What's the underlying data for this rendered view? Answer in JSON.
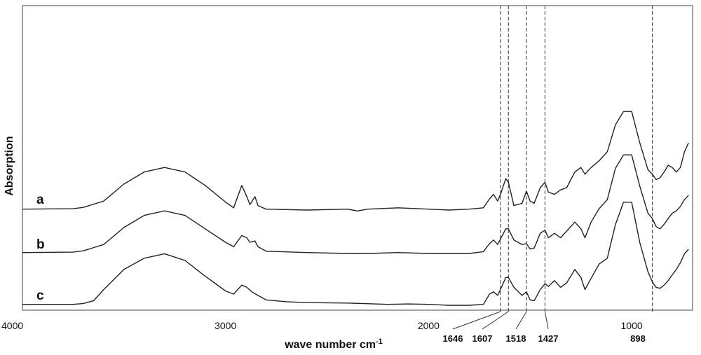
{
  "chart_data": {
    "type": "line",
    "xlabel": "wave number cm",
    "xlabel_superscript": "-1",
    "ylabel": "Absorption",
    "x_axis_reversed": true,
    "xlim": [
      4000,
      700
    ],
    "x_ticks": [
      "4000",
      "3000",
      "2000",
      "1000"
    ],
    "peak_markers": [
      "1646",
      "1607",
      "1518",
      "1427",
      "898"
    ],
    "series": [
      {
        "name": "a",
        "points": [
          [
            4000,
            0.02
          ],
          [
            3750,
            0.03
          ],
          [
            3700,
            0.06
          ],
          [
            3600,
            0.2
          ],
          [
            3500,
            0.58
          ],
          [
            3400,
            0.85
          ],
          [
            3300,
            0.95
          ],
          [
            3200,
            0.85
          ],
          [
            3100,
            0.55
          ],
          [
            3000,
            0.18
          ],
          [
            2960,
            0.05
          ],
          [
            2920,
            0.55
          ],
          [
            2895,
            0.3
          ],
          [
            2880,
            0.12
          ],
          [
            2855,
            0.3
          ],
          [
            2840,
            0.1
          ],
          [
            2800,
            0.02
          ],
          [
            2600,
            0.0
          ],
          [
            2400,
            0.02
          ],
          [
            2350,
            -0.02
          ],
          [
            2300,
            0.02
          ],
          [
            2150,
            0.05
          ],
          [
            2000,
            0.02
          ],
          [
            1900,
            0.0
          ],
          [
            1800,
            0.02
          ],
          [
            1730,
            0.05
          ],
          [
            1700,
            0.25
          ],
          [
            1680,
            0.35
          ],
          [
            1660,
            0.2
          ],
          [
            1646,
            0.35
          ],
          [
            1620,
            0.7
          ],
          [
            1607,
            0.62
          ],
          [
            1580,
            0.1
          ],
          [
            1540,
            0.15
          ],
          [
            1518,
            0.42
          ],
          [
            1500,
            0.2
          ],
          [
            1480,
            0.15
          ],
          [
            1450,
            0.5
          ],
          [
            1427,
            0.62
          ],
          [
            1410,
            0.4
          ],
          [
            1380,
            0.35
          ],
          [
            1350,
            0.45
          ],
          [
            1320,
            0.5
          ],
          [
            1280,
            0.85
          ],
          [
            1250,
            0.95
          ],
          [
            1230,
            0.8
          ],
          [
            1200,
            0.95
          ],
          [
            1160,
            1.1
          ],
          [
            1120,
            1.3
          ],
          [
            1080,
            1.9
          ],
          [
            1040,
            2.2
          ],
          [
            1000,
            2.2
          ],
          [
            960,
            1.5
          ],
          [
            920,
            0.9
          ],
          [
            898,
            0.8
          ],
          [
            880,
            0.68
          ],
          [
            860,
            0.72
          ],
          [
            840,
            0.85
          ],
          [
            820,
            1.0
          ],
          [
            800,
            0.95
          ],
          [
            780,
            0.85
          ],
          [
            760,
            0.95
          ],
          [
            740,
            1.3
          ],
          [
            720,
            1.5
          ]
        ]
      },
      {
        "name": "b",
        "points": [
          [
            4000,
            0.02
          ],
          [
            3750,
            0.03
          ],
          [
            3700,
            0.06
          ],
          [
            3600,
            0.2
          ],
          [
            3500,
            0.58
          ],
          [
            3400,
            0.85
          ],
          [
            3300,
            0.95
          ],
          [
            3200,
            0.85
          ],
          [
            3100,
            0.55
          ],
          [
            3000,
            0.25
          ],
          [
            2960,
            0.15
          ],
          [
            2920,
            0.4
          ],
          [
            2895,
            0.35
          ],
          [
            2880,
            0.25
          ],
          [
            2855,
            0.28
          ],
          [
            2840,
            0.15
          ],
          [
            2800,
            0.05
          ],
          [
            2600,
            0.02
          ],
          [
            2400,
            0.0
          ],
          [
            2300,
            0.0
          ],
          [
            2150,
            0.02
          ],
          [
            2000,
            0.0
          ],
          [
            1900,
            0.0
          ],
          [
            1800,
            0.0
          ],
          [
            1730,
            0.04
          ],
          [
            1700,
            0.22
          ],
          [
            1680,
            0.3
          ],
          [
            1660,
            0.2
          ],
          [
            1646,
            0.32
          ],
          [
            1620,
            0.55
          ],
          [
            1607,
            0.55
          ],
          [
            1580,
            0.3
          ],
          [
            1540,
            0.2
          ],
          [
            1518,
            0.22
          ],
          [
            1500,
            0.1
          ],
          [
            1480,
            0.12
          ],
          [
            1450,
            0.45
          ],
          [
            1427,
            0.52
          ],
          [
            1410,
            0.35
          ],
          [
            1380,
            0.45
          ],
          [
            1350,
            0.35
          ],
          [
            1320,
            0.5
          ],
          [
            1280,
            0.7
          ],
          [
            1250,
            0.55
          ],
          [
            1230,
            0.35
          ],
          [
            1200,
            0.7
          ],
          [
            1160,
            1.0
          ],
          [
            1120,
            1.2
          ],
          [
            1080,
            1.9
          ],
          [
            1040,
            2.2
          ],
          [
            1000,
            2.2
          ],
          [
            960,
            1.5
          ],
          [
            920,
            0.9
          ],
          [
            898,
            0.78
          ],
          [
            880,
            0.6
          ],
          [
            860,
            0.55
          ],
          [
            840,
            0.65
          ],
          [
            820,
            0.78
          ],
          [
            800,
            0.9
          ],
          [
            780,
            0.95
          ],
          [
            760,
            1.05
          ],
          [
            740,
            1.2
          ],
          [
            720,
            1.3
          ]
        ]
      },
      {
        "name": "c",
        "points": [
          [
            4000,
            0.02
          ],
          [
            3750,
            0.02
          ],
          [
            3700,
            0.04
          ],
          [
            3650,
            0.1
          ],
          [
            3600,
            0.35
          ],
          [
            3500,
            0.8
          ],
          [
            3400,
            1.05
          ],
          [
            3300,
            1.15
          ],
          [
            3200,
            1.0
          ],
          [
            3100,
            0.65
          ],
          [
            3000,
            0.32
          ],
          [
            2960,
            0.25
          ],
          [
            2920,
            0.45
          ],
          [
            2895,
            0.4
          ],
          [
            2870,
            0.3
          ],
          [
            2840,
            0.22
          ],
          [
            2800,
            0.12
          ],
          [
            2700,
            0.08
          ],
          [
            2600,
            0.06
          ],
          [
            2400,
            0.05
          ],
          [
            2200,
            0.02
          ],
          [
            2100,
            0.03
          ],
          [
            2000,
            0.02
          ],
          [
            1900,
            0.0
          ],
          [
            1800,
            0.0
          ],
          [
            1730,
            0.02
          ],
          [
            1700,
            0.25
          ],
          [
            1680,
            0.3
          ],
          [
            1660,
            0.22
          ],
          [
            1646,
            0.35
          ],
          [
            1620,
            0.62
          ],
          [
            1607,
            0.62
          ],
          [
            1580,
            0.4
          ],
          [
            1540,
            0.22
          ],
          [
            1518,
            0.3
          ],
          [
            1500,
            0.12
          ],
          [
            1480,
            0.1
          ],
          [
            1450,
            0.35
          ],
          [
            1427,
            0.48
          ],
          [
            1410,
            0.42
          ],
          [
            1380,
            0.55
          ],
          [
            1350,
            0.4
          ],
          [
            1320,
            0.5
          ],
          [
            1280,
            0.8
          ],
          [
            1250,
            0.62
          ],
          [
            1230,
            0.35
          ],
          [
            1200,
            0.6
          ],
          [
            1160,
            0.92
          ],
          [
            1120,
            1.05
          ],
          [
            1080,
            1.8
          ],
          [
            1040,
            2.3
          ],
          [
            1000,
            2.3
          ],
          [
            960,
            1.4
          ],
          [
            920,
            0.75
          ],
          [
            898,
            0.52
          ],
          [
            880,
            0.4
          ],
          [
            860,
            0.38
          ],
          [
            840,
            0.45
          ],
          [
            820,
            0.55
          ],
          [
            800,
            0.68
          ],
          [
            780,
            0.8
          ],
          [
            760,
            0.95
          ],
          [
            740,
            1.15
          ],
          [
            720,
            1.25
          ]
        ]
      }
    ]
  }
}
